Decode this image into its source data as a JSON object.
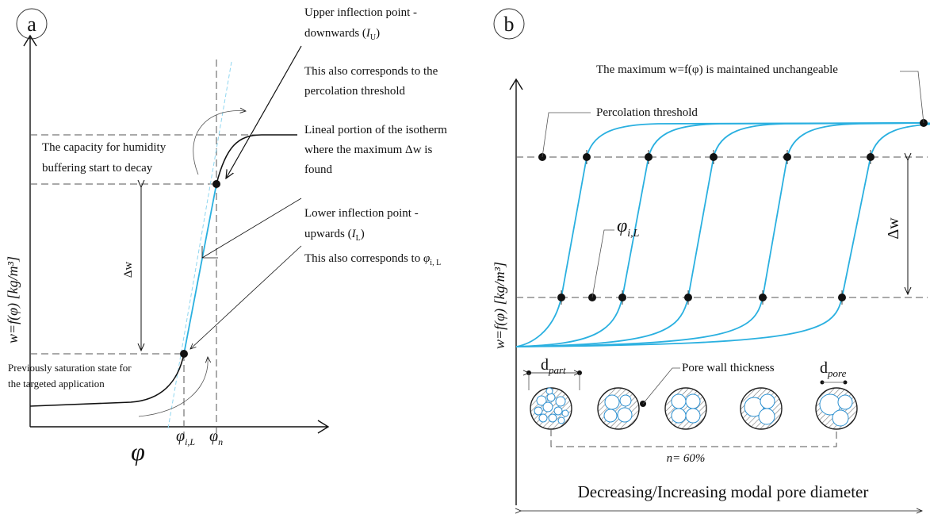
{
  "panel_a": {
    "label": "a",
    "y_axis_label": "w=f(φ) [kg/m³]",
    "x_axis_label": "φ",
    "x_tick_1": {
      "symbol": "φ",
      "sub": "i,L"
    },
    "x_tick_2": {
      "symbol": "φ",
      "sub": "n"
    },
    "delta_w": "Δw",
    "capacity_note": [
      "The capacity for humidity",
      "buffering start to decay"
    ],
    "upper_note": {
      "line1": "Upper inflection point -",
      "line2_pre": "downwards (",
      "symbol": "I",
      "sub": "U",
      "line2_post": ")"
    },
    "percolation_note": [
      "This also corresponds to the",
      "percolation threshold"
    ],
    "lineal_note": [
      "Lineal portion of the isotherm",
      "where the maximum Δw is",
      "found"
    ],
    "lower_note": {
      "line1": "Lower inflection point -",
      "line2_pre": "upwards (",
      "symbol": "I",
      "sub": "L",
      "line2_post": ")"
    },
    "lower_corresponds": {
      "text": "This also corresponds to ",
      "symbol": "φ",
      "sub": "i, L"
    },
    "saturation_note": [
      "Previously saturation state for",
      "the targeted application"
    ]
  },
  "panel_b": {
    "label": "b",
    "y_axis_label": "w=f(φ) [kg/m³]",
    "max_note": "The maximum w=f(φ) is maintained unchangeable",
    "percolation_label": "Percolation threshold",
    "phi_label": {
      "symbol": "φ",
      "sub": "i,L"
    },
    "delta_w": "Δw",
    "pore_wall": "Pore wall thickness",
    "d_part": {
      "symbol": "d",
      "sub": "part"
    },
    "d_pore": {
      "symbol": "d",
      "sub": "pore"
    },
    "porosity": "n= 60%",
    "x_axis_label": "Decreasing/Increasing modal pore diameter"
  }
}
